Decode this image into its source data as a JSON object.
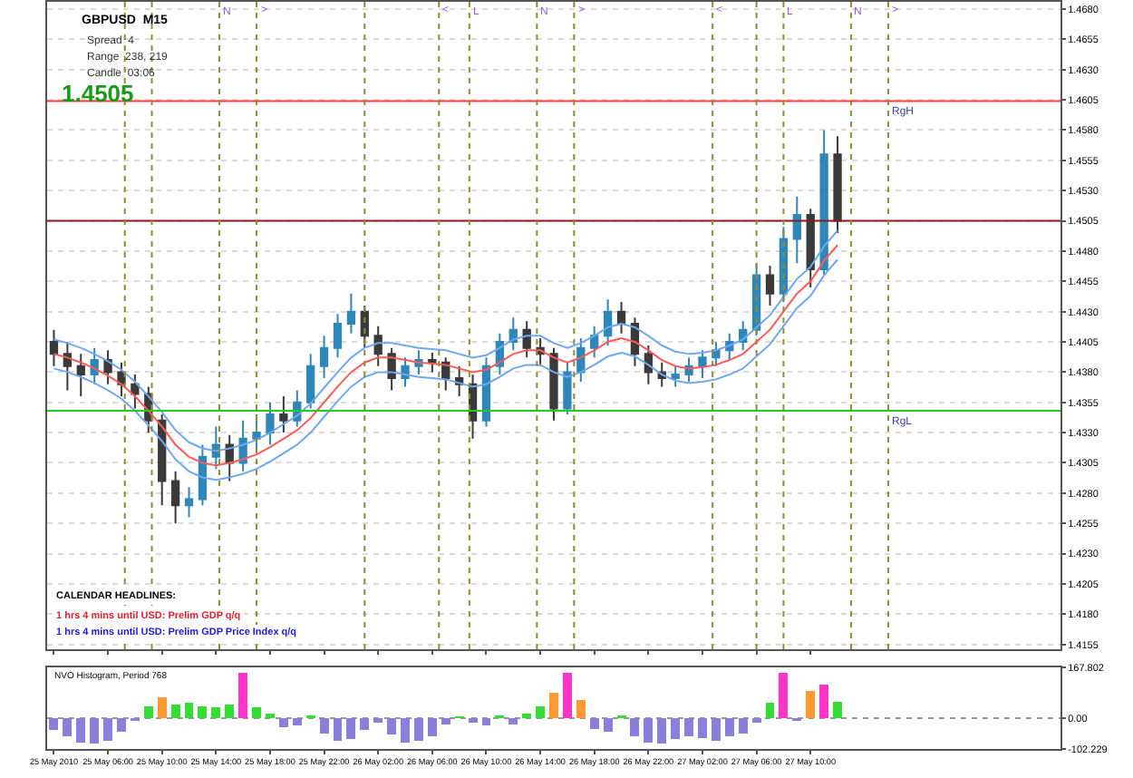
{
  "chart_data": [
    {
      "type": "candlestick",
      "title": "GBPUSD  M15",
      "x": [
        "2010-05-25T02:00",
        "2010-05-25T03:00",
        "2010-05-25T04:00",
        "2010-05-25T05:00",
        "2010-05-25T06:00",
        "2010-05-25T07:00",
        "2010-05-25T08:00",
        "2010-05-25T09:00",
        "2010-05-25T10:00",
        "2010-05-25T11:00",
        "2010-05-25T12:00",
        "2010-05-25T13:00",
        "2010-05-25T14:00",
        "2010-05-25T15:00",
        "2010-05-25T16:00",
        "2010-05-25T17:00",
        "2010-05-25T18:00",
        "2010-05-25T19:00",
        "2010-05-25T20:00",
        "2010-05-25T21:00",
        "2010-05-25T22:00",
        "2010-05-25T23:00",
        "2010-05-26T00:00",
        "2010-05-26T01:00",
        "2010-05-26T02:00",
        "2010-05-26T03:00",
        "2010-05-26T04:00",
        "2010-05-26T05:00",
        "2010-05-26T06:00",
        "2010-05-26T07:00",
        "2010-05-26T08:00",
        "2010-05-26T09:00",
        "2010-05-26T10:00",
        "2010-05-26T11:00",
        "2010-05-26T12:00",
        "2010-05-26T13:00",
        "2010-05-26T14:00",
        "2010-05-26T15:00",
        "2010-05-26T16:00",
        "2010-05-26T17:00",
        "2010-05-26T18:00",
        "2010-05-26T19:00",
        "2010-05-26T20:00",
        "2010-05-26T21:00",
        "2010-05-26T22:00",
        "2010-05-26T23:00",
        "2010-05-27T00:00",
        "2010-05-27T01:00",
        "2010-05-27T02:00",
        "2010-05-27T03:00",
        "2010-05-27T04:00",
        "2010-05-27T05:00",
        "2010-05-27T06:00",
        "2010-05-27T07:00",
        "2010-05-27T08:00",
        "2010-05-27T09:00",
        "2010-05-27T10:00",
        "2010-05-27T11:00",
        "2010-05-27T12:00"
      ],
      "ohlc": [
        [
          1.4405,
          1.4415,
          1.4385,
          1.4395
        ],
        [
          1.4395,
          1.4405,
          1.4365,
          1.4385
        ],
        [
          1.4385,
          1.4395,
          1.436,
          1.4378
        ],
        [
          1.4378,
          1.44,
          1.437,
          1.439
        ],
        [
          1.439,
          1.4398,
          1.437,
          1.438
        ],
        [
          1.438,
          1.4388,
          1.436,
          1.437
        ],
        [
          1.437,
          1.4378,
          1.435,
          1.4362
        ],
        [
          1.4362,
          1.4368,
          1.433,
          1.434
        ],
        [
          1.434,
          1.4345,
          1.427,
          1.429
        ],
        [
          1.429,
          1.4298,
          1.4255,
          1.427
        ],
        [
          1.427,
          1.4285,
          1.426,
          1.4275
        ],
        [
          1.4275,
          1.432,
          1.427,
          1.431
        ],
        [
          1.431,
          1.4335,
          1.43,
          1.432
        ],
        [
          1.432,
          1.4328,
          1.429,
          1.4305
        ],
        [
          1.4305,
          1.434,
          1.4298,
          1.4325
        ],
        [
          1.4325,
          1.4345,
          1.4315,
          1.433
        ],
        [
          1.433,
          1.4355,
          1.432,
          1.4345
        ],
        [
          1.4345,
          1.436,
          1.433,
          1.434
        ],
        [
          1.434,
          1.4365,
          1.4335,
          1.4355
        ],
        [
          1.4355,
          1.4395,
          1.435,
          1.4385
        ],
        [
          1.4385,
          1.441,
          1.4375,
          1.44
        ],
        [
          1.44,
          1.4428,
          1.4392,
          1.442
        ],
        [
          1.442,
          1.4445,
          1.4412,
          1.443
        ],
        [
          1.443,
          1.4435,
          1.44,
          1.441
        ],
        [
          1.441,
          1.4418,
          1.4385,
          1.4395
        ],
        [
          1.4395,
          1.44,
          1.4365,
          1.4375
        ],
        [
          1.4375,
          1.4392,
          1.4368,
          1.4385
        ],
        [
          1.4385,
          1.4398,
          1.4378,
          1.439
        ],
        [
          1.439,
          1.4396,
          1.438,
          1.4388
        ],
        [
          1.4388,
          1.4392,
          1.4365,
          1.4375
        ],
        [
          1.4375,
          1.4385,
          1.436,
          1.437
        ],
        [
          1.437,
          1.4378,
          1.4325,
          1.434
        ],
        [
          1.434,
          1.4392,
          1.4335,
          1.4385
        ],
        [
          1.4385,
          1.4412,
          1.4378,
          1.4405
        ],
        [
          1.4405,
          1.4425,
          1.4398,
          1.4415
        ],
        [
          1.4415,
          1.4422,
          1.4392,
          1.44
        ],
        [
          1.44,
          1.4408,
          1.4385,
          1.4395
        ],
        [
          1.4395,
          1.44,
          1.434,
          1.435
        ],
        [
          1.435,
          1.4388,
          1.4345,
          1.438
        ],
        [
          1.438,
          1.4408,
          1.4372,
          1.44
        ],
        [
          1.44,
          1.4418,
          1.4392,
          1.441
        ],
        [
          1.441,
          1.444,
          1.4402,
          1.443
        ],
        [
          1.443,
          1.4438,
          1.4412,
          1.442
        ],
        [
          1.442,
          1.4425,
          1.4385,
          1.4395
        ],
        [
          1.4395,
          1.4402,
          1.437,
          1.438
        ],
        [
          1.438,
          1.4388,
          1.4368,
          1.4375
        ],
        [
          1.4375,
          1.4385,
          1.4368,
          1.4378
        ],
        [
          1.4378,
          1.4392,
          1.4372,
          1.4385
        ],
        [
          1.4385,
          1.4398,
          1.4375,
          1.4392
        ],
        [
          1.4392,
          1.4405,
          1.4385,
          1.4398
        ],
        [
          1.4398,
          1.4412,
          1.439,
          1.4405
        ],
        [
          1.4405,
          1.4422,
          1.4398,
          1.4415
        ],
        [
          1.4415,
          1.447,
          1.441,
          1.446
        ],
        [
          1.446,
          1.4468,
          1.4435,
          1.4445
        ],
        [
          1.4445,
          1.45,
          1.4438,
          1.449
        ],
        [
          1.449,
          1.4525,
          1.447,
          1.451
        ],
        [
          1.451,
          1.4515,
          1.445,
          1.4465
        ],
        [
          1.4465,
          1.458,
          1.446,
          1.456
        ],
        [
          1.456,
          1.4575,
          1.4495,
          1.4505
        ]
      ],
      "colors": [
        "#3a3a3a",
        "#3a3a3a",
        "#3a3a3a",
        "#2f86b8",
        "#3a3a3a",
        "#3a3a3a",
        "#3a3a3a",
        "#3a3a3a",
        "#3a3a3a",
        "#3a3a3a",
        "#2f86b8",
        "#2f86b8",
        "#2f86b8",
        "#3a3a3a",
        "#2f86b8",
        "#2f86b8",
        "#2f86b8",
        "#3a3a3a",
        "#2f86b8",
        "#2f86b8",
        "#2f86b8",
        "#2f86b8",
        "#2f86b8",
        "#3a3a3a",
        "#3a3a3a",
        "#3a3a3a",
        "#2f86b8",
        "#2f86b8",
        "#3a3a3a",
        "#3a3a3a",
        "#3a3a3a",
        "#3a3a3a",
        "#2f86b8",
        "#2f86b8",
        "#2f86b8",
        "#3a3a3a",
        "#3a3a3a",
        "#3a3a3a",
        "#2f86b8",
        "#2f86b8",
        "#2f86b8",
        "#2f86b8",
        "#3a3a3a",
        "#3a3a3a",
        "#3a3a3a",
        "#3a3a3a",
        "#2f86b8",
        "#2f86b8",
        "#2f86b8",
        "#2f86b8",
        "#2f86b8",
        "#2f86b8",
        "#2f86b8",
        "#3a3a3a",
        "#2f86b8",
        "#2f86b8",
        "#3a3a3a",
        "#2f86b8",
        "#3a3a3a"
      ],
      "series": [
        {
          "type": "line",
          "color": "#ff5a5a",
          "values": [
            1.4395,
            1.4392,
            1.4388,
            1.4383,
            1.4377,
            1.437,
            1.436,
            1.4348,
            1.4335,
            1.432,
            1.431,
            1.4305,
            1.4303,
            1.4305,
            1.4308,
            1.4312,
            1.4318,
            1.4325,
            1.4332,
            1.4342,
            1.4355,
            1.4368,
            1.438,
            1.4388,
            1.4392,
            1.4392,
            1.439,
            1.4388,
            1.4387,
            1.4386,
            1.4383,
            1.438,
            1.4382,
            1.4388,
            1.4395,
            1.4398,
            1.4398,
            1.4392,
            1.4388,
            1.4392,
            1.4398,
            1.4405,
            1.4408,
            1.4405,
            1.4398,
            1.439,
            1.4385,
            1.4383,
            1.4384,
            1.4386,
            1.439,
            1.4395,
            1.4405,
            1.4415,
            1.443,
            1.4445,
            1.4455,
            1.4472,
            1.4485
          ]
        },
        {
          "type": "line",
          "color": "#6fa8f0",
          "values": [
            1.4407,
            1.4404,
            1.44,
            1.4395,
            1.4389,
            1.4382,
            1.4372,
            1.436,
            1.4347,
            1.4332,
            1.4322,
            1.4317,
            1.4315,
            1.4317,
            1.432,
            1.4324,
            1.433,
            1.4337,
            1.4344,
            1.4354,
            1.4367,
            1.438,
            1.4392,
            1.44,
            1.4404,
            1.4404,
            1.4402,
            1.44,
            1.4399,
            1.4398,
            1.4395,
            1.4392,
            1.4394,
            1.44,
            1.4407,
            1.441,
            1.441,
            1.4404,
            1.44,
            1.4404,
            1.441,
            1.4417,
            1.442,
            1.4417,
            1.441,
            1.4402,
            1.4397,
            1.4395,
            1.4396,
            1.4398,
            1.4402,
            1.4407,
            1.4417,
            1.4427,
            1.4442,
            1.4457,
            1.4467,
            1.4484,
            1.4497
          ]
        },
        {
          "type": "line",
          "color": "#6fa8f0",
          "values": [
            1.4383,
            1.438,
            1.4376,
            1.4371,
            1.4365,
            1.4358,
            1.4348,
            1.4336,
            1.4323,
            1.4308,
            1.4298,
            1.4293,
            1.4291,
            1.4293,
            1.4296,
            1.43,
            1.4306,
            1.4313,
            1.432,
            1.433,
            1.4343,
            1.4356,
            1.4368,
            1.4376,
            1.438,
            1.438,
            1.4378,
            1.4376,
            1.4375,
            1.4374,
            1.4371,
            1.4368,
            1.437,
            1.4376,
            1.4383,
            1.4386,
            1.4386,
            1.438,
            1.4376,
            1.438,
            1.4386,
            1.4393,
            1.4396,
            1.4393,
            1.4386,
            1.4378,
            1.4373,
            1.4371,
            1.4372,
            1.4374,
            1.4378,
            1.4383,
            1.4393,
            1.4403,
            1.4418,
            1.4433,
            1.4443,
            1.446,
            1.4473
          ]
        }
      ],
      "xlim": [
        "2010-05-25T01:30",
        "2010-05-28T04:30"
      ],
      "xticks": [
        {
          "value": "2010-05-25T02:00",
          "label": null
        },
        {
          "value": "2010-05-25T06:00",
          "label": null
        },
        {
          "value": "2010-05-25T10:00",
          "label": null
        },
        {
          "value": "2010-05-25T14:00",
          "label": null
        },
        {
          "value": "2010-05-25T18:00",
          "label": null
        },
        {
          "value": "2010-05-25T22:00",
          "label": null
        },
        {
          "value": "2010-05-26T02:00",
          "label": null
        },
        {
          "value": "2010-05-26T06:00",
          "label": null
        },
        {
          "value": "2010-05-26T10:00",
          "label": null
        },
        {
          "value": "2010-05-26T14:00",
          "label": null
        },
        {
          "value": "2010-05-26T18:00",
          "label": null
        },
        {
          "value": "2010-05-26T22:00",
          "label": null
        },
        {
          "value": "2010-05-27T02:00",
          "label": null
        },
        {
          "value": "2010-05-27T06:00",
          "label": null
        },
        {
          "value": "2010-05-27T10:00",
          "label": null
        }
      ],
      "ylim": [
        1.4151,
        1.4686
      ],
      "yticks": [
        1.4155,
        {
          "value": 1.418,
          "label": "1.4180"
        },
        1.4205,
        {
          "value": 1.423,
          "label": "1.4230"
        },
        1.4255,
        {
          "value": 1.428,
          "label": "1.4280"
        },
        1.4305,
        {
          "value": 1.433,
          "label": "1.4330"
        },
        1.4355,
        {
          "value": 1.438,
          "label": "1.4380"
        },
        1.4405,
        {
          "value": 1.443,
          "label": "1.4430"
        },
        1.4455,
        {
          "value": 1.448,
          "label": "1.4480"
        },
        1.4505,
        {
          "value": 1.453,
          "label": "1.4530"
        },
        1.4555,
        {
          "value": 1.458,
          "label": "1.4580"
        },
        1.4605,
        {
          "value": 1.463,
          "label": "1.4630"
        },
        1.4655,
        {
          "value": 1.468,
          "label": "1.4680"
        }
      ],
      "tick_labels": "y",
      "grid": "y",
      "marker": "none",
      "ref_lines": [
        {
          "axis": "y",
          "value": 1.4604,
          "label": "RgH",
          "color": "#ff3b3b"
        },
        {
          "axis": "y",
          "value": 1.4348,
          "label": "RgL",
          "color": "#22cc22"
        },
        {
          "axis": "y",
          "value": 1.4505,
          "label": null,
          "color": "#8b1a1a"
        },
        {
          "axis": "x",
          "value": "2010-05-25T07:15",
          "label": null,
          "color": "#8c8c3c",
          "line_style": "dotted"
        },
        {
          "axis": "x",
          "value": "2010-05-25T09:15",
          "label": null,
          "color": "#8c8c3c",
          "line_style": "dotted"
        },
        {
          "axis": "x",
          "value": "2010-05-25T14:15",
          "label": "N",
          "color": "#8c8c3c",
          "line_style": "dotted"
        },
        {
          "axis": "x",
          "value": "2010-05-25T17:00",
          "label": ">",
          "color": "#8c8c3c",
          "line_style": "dotted"
        },
        {
          "axis": "x",
          "value": "2010-05-26T01:00",
          "label": null,
          "color": "#8c8c3c",
          "line_style": "dotted"
        },
        {
          "axis": "x",
          "value": "2010-05-26T06:30",
          "label": "<",
          "color": "#8c8c3c",
          "line_style": "dotted"
        },
        {
          "axis": "x",
          "value": "2010-05-26T08:45",
          "label": "L",
          "color": "#8c8c3c",
          "line_style": "dotted"
        },
        {
          "axis": "x",
          "value": "2010-05-26T13:45",
          "label": "N",
          "color": "#8c8c3c",
          "line_style": "dotted"
        },
        {
          "axis": "x",
          "value": "2010-05-26T16:30",
          "label": ">",
          "color": "#8c8c3c",
          "line_style": "dotted"
        },
        {
          "axis": "x",
          "value": "2010-05-27T02:45",
          "label": "<",
          "color": "#8c8c3c",
          "line_style": "dotted"
        },
        {
          "axis": "x",
          "value": "2010-05-27T06:00",
          "label": null,
          "color": "#8c8c3c",
          "line_style": "dotted"
        },
        {
          "axis": "x",
          "value": "2010-05-27T08:00",
          "label": "L",
          "color": "#8c8c3c",
          "line_style": "dotted"
        },
        {
          "axis": "x",
          "value": "2010-05-27T13:00",
          "label": "N",
          "color": "#8c8c3c",
          "line_style": "dotted"
        },
        {
          "axis": "x",
          "value": "2010-05-27T15:45",
          "label": ">",
          "color": "#8c8c3c",
          "line_style": "dotted"
        }
      ],
      "annotations": [
        "Spread  4",
        "Range  238, 219",
        "Candle  03:06",
        "1.4505",
        "CALENDAR HEADLINES:",
        "1 hrs 4 mins until USD: Prelim GDP q/q",
        "1 hrs 4 mins until USD: Prelim GDP Price Index q/q"
      ]
    },
    {
      "type": "bar",
      "title": "NVO Histogram, Period 768",
      "x": [
        "2010-05-25T02:00",
        "2010-05-25T03:00",
        "2010-05-25T04:00",
        "2010-05-25T05:00",
        "2010-05-25T06:00",
        "2010-05-25T07:00",
        "2010-05-25T08:00",
        "2010-05-25T09:00",
        "2010-05-25T10:00",
        "2010-05-25T11:00",
        "2010-05-25T12:00",
        "2010-05-25T13:00",
        "2010-05-25T14:00",
        "2010-05-25T15:00",
        "2010-05-25T16:00",
        "2010-05-25T17:00",
        "2010-05-25T18:00",
        "2010-05-25T19:00",
        "2010-05-25T20:00",
        "2010-05-25T21:00",
        "2010-05-25T22:00",
        "2010-05-25T23:00",
        "2010-05-26T00:00",
        "2010-05-26T01:00",
        "2010-05-26T02:00",
        "2010-05-26T03:00",
        "2010-05-26T04:00",
        "2010-05-26T05:00",
        "2010-05-26T06:00",
        "2010-05-26T07:00",
        "2010-05-26T08:00",
        "2010-05-26T09:00",
        "2010-05-26T10:00",
        "2010-05-26T11:00",
        "2010-05-26T12:00",
        "2010-05-26T13:00",
        "2010-05-26T14:00",
        "2010-05-26T15:00",
        "2010-05-26T16:00",
        "2010-05-26T17:00",
        "2010-05-26T18:00",
        "2010-05-26T19:00",
        "2010-05-26T20:00",
        "2010-05-26T21:00",
        "2010-05-26T22:00",
        "2010-05-26T23:00",
        "2010-05-27T00:00",
        "2010-05-27T01:00",
        "2010-05-27T02:00",
        "2010-05-27T03:00",
        "2010-05-27T04:00",
        "2010-05-27T05:00",
        "2010-05-27T06:00",
        "2010-05-27T07:00",
        "2010-05-27T08:00",
        "2010-05-27T09:00",
        "2010-05-27T10:00",
        "2010-05-27T11:00",
        "2010-05-27T12:00"
      ],
      "values": [
        -40,
        -60,
        -80,
        -85,
        -75,
        -45,
        -10,
        40,
        70,
        45,
        50,
        40,
        35,
        45,
        150,
        35,
        15,
        -30,
        -25,
        10,
        -50,
        -75,
        -70,
        -40,
        -15,
        -55,
        -80,
        -75,
        -60,
        -20,
        5,
        -15,
        -25,
        10,
        -20,
        15,
        40,
        85,
        150,
        60,
        -35,
        -45,
        10,
        -60,
        -80,
        -85,
        -70,
        -60,
        -65,
        -75,
        -60,
        -50,
        -15,
        50,
        150,
        -10,
        90,
        110,
        55
      ],
      "colors": [
        "#8a80dc",
        "#8a80dc",
        "#8a80dc",
        "#8a80dc",
        "#8a80dc",
        "#8a80dc",
        "#8a80dc",
        "#33dd33",
        "#ff9a33",
        "#33dd33",
        "#33dd33",
        "#33dd33",
        "#33dd33",
        "#33dd33",
        "#ff33cc",
        "#33dd33",
        "#33dd33",
        "#8a80dc",
        "#8a80dc",
        "#33dd33",
        "#8a80dc",
        "#8a80dc",
        "#8a80dc",
        "#8a80dc",
        "#8a80dc",
        "#8a80dc",
        "#8a80dc",
        "#8a80dc",
        "#8a80dc",
        "#8a80dc",
        "#33dd33",
        "#8a80dc",
        "#8a80dc",
        "#33dd33",
        "#8a80dc",
        "#33dd33",
        "#33dd33",
        "#ff9a33",
        "#ff33cc",
        "#ff9a33",
        "#8a80dc",
        "#8a80dc",
        "#33dd33",
        "#8a80dc",
        "#8a80dc",
        "#8a80dc",
        "#8a80dc",
        "#8a80dc",
        "#8a80dc",
        "#8a80dc",
        "#8a80dc",
        "#8a80dc",
        "#8a80dc",
        "#33dd33",
        "#ff33cc",
        "#8a80dc",
        "#ff9a33",
        "#ff33cc",
        "#33dd33"
      ],
      "xlim": [
        "2010-05-25T01:30",
        "2010-05-28T04:30"
      ],
      "xticks": [
        {
          "value": "2010-05-25T02:00",
          "label": "25 May 2010"
        },
        {
          "value": "2010-05-25T06:00",
          "label": "25 May 06:00"
        },
        {
          "value": "2010-05-25T10:00",
          "label": "25 May 10:00"
        },
        {
          "value": "2010-05-25T14:00",
          "label": "25 May 14:00"
        },
        {
          "value": "2010-05-25T18:00",
          "label": "25 May 18:00"
        },
        {
          "value": "2010-05-25T22:00",
          "label": "25 May 22:00"
        },
        {
          "value": "2010-05-26T02:00",
          "label": "26 May 02:00"
        },
        {
          "value": "2010-05-26T06:00",
          "label": "26 May 06:00"
        },
        {
          "value": "2010-05-26T10:00",
          "label": "26 May 10:00"
        },
        {
          "value": "2010-05-26T14:00",
          "label": "26 May 14:00"
        },
        {
          "value": "2010-05-26T18:00",
          "label": "26 May 18:00"
        },
        {
          "value": "2010-05-26T22:00",
          "label": "26 May 22:00"
        },
        {
          "value": "2010-05-27T02:00",
          "label": "27 May 02:00"
        },
        {
          "value": "2010-05-27T06:00",
          "label": "27 May 06:00"
        },
        {
          "value": "2010-05-27T10:00",
          "label": "27 May 10:00"
        }
      ],
      "ylim": [
        -102.229,
        167.802
      ],
      "yticks": [
        -102.229,
        {
          "value": 0,
          "label": "0.00"
        },
        167.802
      ],
      "grid": "y"
    }
  ]
}
